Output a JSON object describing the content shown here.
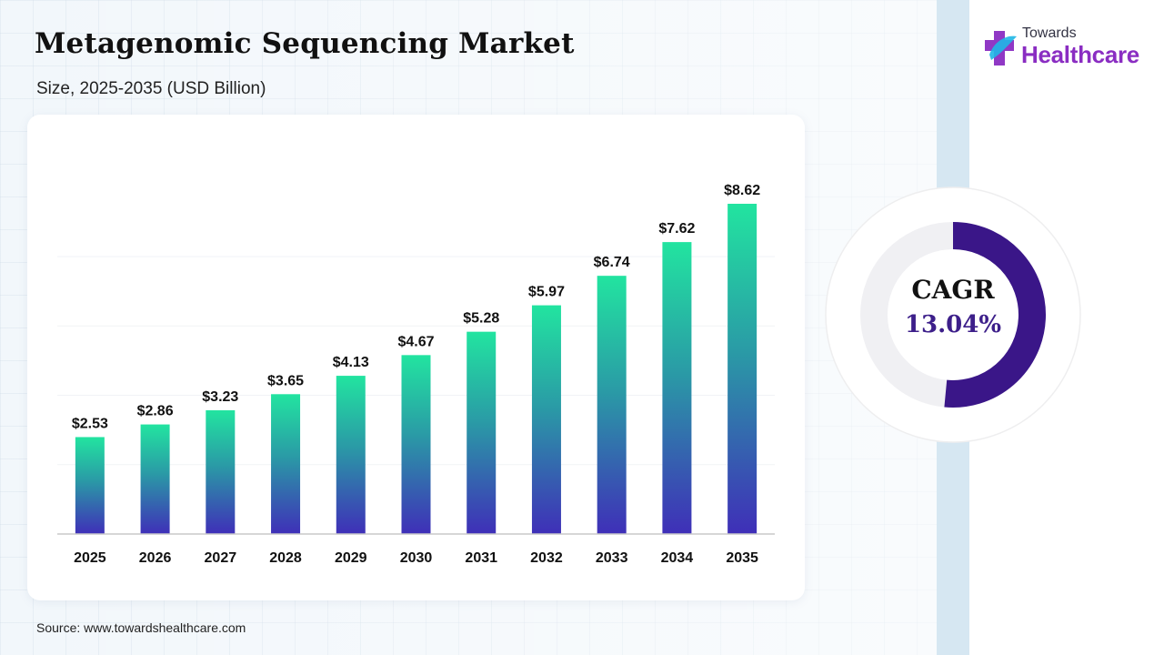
{
  "header": {
    "title": "Metagenomic Sequencing Market",
    "subtitle": "Size, 2025-2035 (USD Billion)"
  },
  "brand": {
    "top": "Towards",
    "main": "Healthcare",
    "accent": "#8a2dc2",
    "mark_colors": [
      "#1fb7e6",
      "#8a2dc2"
    ]
  },
  "source": "Source: www.towardshealthcare.com",
  "cagr": {
    "label": "CAGR",
    "value": "13.04%",
    "ring_color": "#3a1688",
    "track_color": "#f0f0f3"
  },
  "chart_data": {
    "type": "bar",
    "categories": [
      "2025",
      "2026",
      "2027",
      "2028",
      "2029",
      "2030",
      "2031",
      "2032",
      "2033",
      "2034",
      "2035"
    ],
    "values": [
      2.53,
      2.86,
      3.23,
      3.65,
      4.13,
      4.67,
      5.28,
      5.97,
      6.74,
      7.62,
      8.62
    ],
    "value_labels": [
      "$2.53",
      "$2.86",
      "$3.23",
      "$3.65",
      "$4.13",
      "$4.67",
      "$5.28",
      "$5.97",
      "$6.74",
      "$7.62",
      "$8.62"
    ],
    "title": "Metagenomic Sequencing Market",
    "xlabel": "",
    "ylabel": "",
    "ylim": [
      0,
      10
    ],
    "grid": true,
    "colors": {
      "top": "#22e4a0",
      "mid": "#2a9aa6",
      "bottom": "#3f2fb8"
    }
  }
}
